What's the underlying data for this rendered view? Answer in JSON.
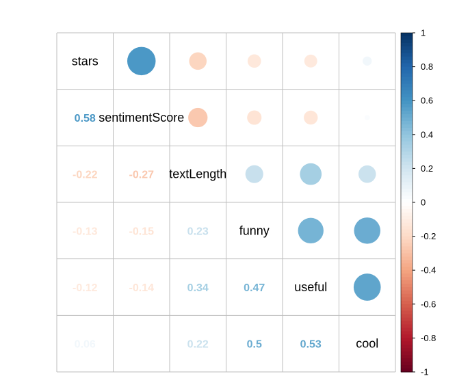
{
  "chart_data": {
    "type": "heatmap",
    "variables": [
      "stars",
      "sentimentScore",
      "textLength",
      "funny",
      "useful",
      "cool"
    ],
    "correlation_matrix": [
      [
        1.0,
        0.58,
        -0.22,
        -0.13,
        -0.12,
        0.06
      ],
      [
        0.58,
        1.0,
        -0.27,
        -0.15,
        -0.14,
        0.02
      ],
      [
        -0.22,
        -0.27,
        1.0,
        0.23,
        0.34,
        0.22
      ],
      [
        -0.13,
        -0.15,
        0.23,
        1.0,
        0.47,
        0.5
      ],
      [
        -0.12,
        -0.14,
        0.34,
        0.47,
        1.0,
        0.53
      ],
      [
        0.06,
        0.02,
        0.22,
        0.5,
        0.53,
        1.0
      ]
    ],
    "lower_triangle_labels": [
      [
        "0.58"
      ],
      [
        "-0.22",
        "-0.27"
      ],
      [
        "-0.13",
        "-0.15",
        "0.23"
      ],
      [
        "-0.12",
        "-0.14",
        "0.34",
        "0.47"
      ],
      [
        "0.06",
        "",
        "0.22",
        "0.5",
        "0.53"
      ]
    ],
    "upper_display": "circle",
    "lower_display": "number",
    "colorbar": {
      "range": [
        -1,
        1
      ],
      "ticks": [
        "1",
        "0.8",
        "0.6",
        "0.4",
        "0.2",
        "0",
        "-0.2",
        "-0.4",
        "-0.6",
        "-0.8",
        "-1"
      ]
    },
    "colors": {
      "positive_max": "#053061",
      "negative_max": "#67001F",
      "neutral": "#FFFFFF",
      "grid": "#BEBEBE"
    }
  }
}
